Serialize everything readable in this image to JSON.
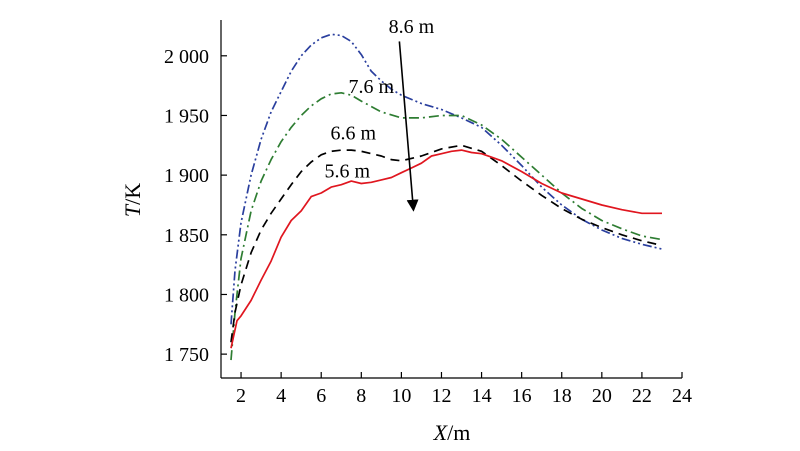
{
  "chart_data": {
    "type": "line",
    "xlabel": {
      "var": "X",
      "unit": "/m"
    },
    "ylabel": {
      "var": "T",
      "unit": "/K"
    },
    "xlim": [
      1,
      24
    ],
    "ylim": [
      1730,
      2030
    ],
    "xticks": [
      2,
      4,
      6,
      8,
      10,
      12,
      14,
      16,
      18,
      20,
      22,
      24
    ],
    "xtick_labels": [
      "2",
      "4",
      "6",
      "8",
      "10",
      "12",
      "14",
      "16",
      "18",
      "20",
      "22",
      "24"
    ],
    "yticks": [
      1750,
      1800,
      1850,
      1900,
      1950,
      2000
    ],
    "ytick_labels": [
      "1 750",
      "1 800",
      "1 850",
      "1 900",
      "1 950",
      "2 000"
    ],
    "grid": false,
    "legend": "none",
    "annotations": {
      "labels": [
        {
          "text": "8.6 m",
          "x": 10.5,
          "y": 2019
        },
        {
          "text": "7.6 m",
          "x": 8.5,
          "y": 1969
        },
        {
          "text": "6.6 m",
          "x": 7.6,
          "y": 1930
        },
        {
          "text": "5.6 m",
          "x": 7.3,
          "y": 1898
        }
      ],
      "arrow": {
        "from": [
          9.9,
          2012
        ],
        "to": [
          10.6,
          1871
        ]
      }
    },
    "series": [
      {
        "label": "8.6 m",
        "color": "#2a3f9e",
        "style": "dash-dot-dot",
        "x": [
          1.5,
          1.7,
          2.0,
          2.5,
          3.0,
          3.5,
          4.0,
          4.5,
          5.0,
          5.5,
          6.0,
          6.5,
          7.0,
          7.5,
          8.0,
          8.5,
          9.0,
          9.5,
          10.0,
          11.0,
          12.0,
          13.0,
          14.0,
          15.0,
          16.0,
          17.0,
          18.0,
          19.0,
          20.0,
          21.0,
          22.0,
          23.0
        ],
        "y": [
          1775,
          1820,
          1860,
          1900,
          1930,
          1953,
          1970,
          1987,
          2000,
          2009,
          2015,
          2018,
          2017,
          2012,
          2001,
          1987,
          1979,
          1972,
          1967,
          1960,
          1955,
          1948,
          1940,
          1925,
          1908,
          1890,
          1875,
          1863,
          1854,
          1847,
          1842,
          1838
        ]
      },
      {
        "label": "7.6 m",
        "color": "#2e7d32",
        "style": "dash-dot",
        "x": [
          1.5,
          1.7,
          2.0,
          2.5,
          3.0,
          3.5,
          4.0,
          4.5,
          5.0,
          5.5,
          6.0,
          6.5,
          7.0,
          7.5,
          8.0,
          9.0,
          10.0,
          11.0,
          12.0,
          13.0,
          14.0,
          15.0,
          16.0,
          17.0,
          18.0,
          19.0,
          20.0,
          21.0,
          22.0,
          23.0
        ],
        "y": [
          1745,
          1785,
          1830,
          1870,
          1895,
          1913,
          1928,
          1940,
          1950,
          1958,
          1964,
          1968,
          1969,
          1967,
          1962,
          1953,
          1948,
          1948,
          1950,
          1950,
          1942,
          1930,
          1915,
          1900,
          1885,
          1872,
          1862,
          1855,
          1849,
          1846
        ]
      },
      {
        "label": "6.6 m",
        "color": "#000000",
        "style": "dashed",
        "x": [
          1.5,
          1.7,
          2.0,
          2.5,
          3.0,
          3.5,
          4.0,
          4.5,
          5.0,
          5.5,
          6.0,
          6.5,
          7.0,
          7.5,
          8.0,
          8.5,
          9.0,
          9.5,
          10.0,
          11.0,
          12.0,
          13.0,
          14.0,
          15.0,
          16.0,
          17.0,
          18.0,
          19.0,
          20.0,
          21.0,
          22.0,
          23.0
        ],
        "y": [
          1760,
          1785,
          1808,
          1835,
          1854,
          1868,
          1880,
          1892,
          1903,
          1911,
          1917,
          1920,
          1921,
          1921,
          1920,
          1918,
          1916,
          1913,
          1912,
          1916,
          1922,
          1925,
          1920,
          1908,
          1895,
          1883,
          1872,
          1863,
          1856,
          1850,
          1845,
          1841
        ]
      },
      {
        "label": "5.6 m",
        "color": "#e0161f",
        "style": "solid",
        "x": [
          1.5,
          1.8,
          2.0,
          2.5,
          3.0,
          3.5,
          4.0,
          4.5,
          5.0,
          5.5,
          6.0,
          6.5,
          7.0,
          7.5,
          8.0,
          8.5,
          9.0,
          9.5,
          10.0,
          10.5,
          11.0,
          11.5,
          12.0,
          12.5,
          13.0,
          13.5,
          14.0,
          14.5,
          15.0,
          16.0,
          17.0,
          18.0,
          19.0,
          20.0,
          21.0,
          22.0,
          23.0
        ],
        "y": [
          1755,
          1778,
          1782,
          1795,
          1812,
          1828,
          1848,
          1862,
          1870,
          1882,
          1885,
          1890,
          1892,
          1895,
          1893,
          1894,
          1896,
          1898,
          1902,
          1906,
          1910,
          1916,
          1918,
          1920,
          1921,
          1919,
          1918,
          1915,
          1912,
          1903,
          1893,
          1885,
          1880,
          1875,
          1871,
          1868,
          1868
        ]
      }
    ]
  }
}
